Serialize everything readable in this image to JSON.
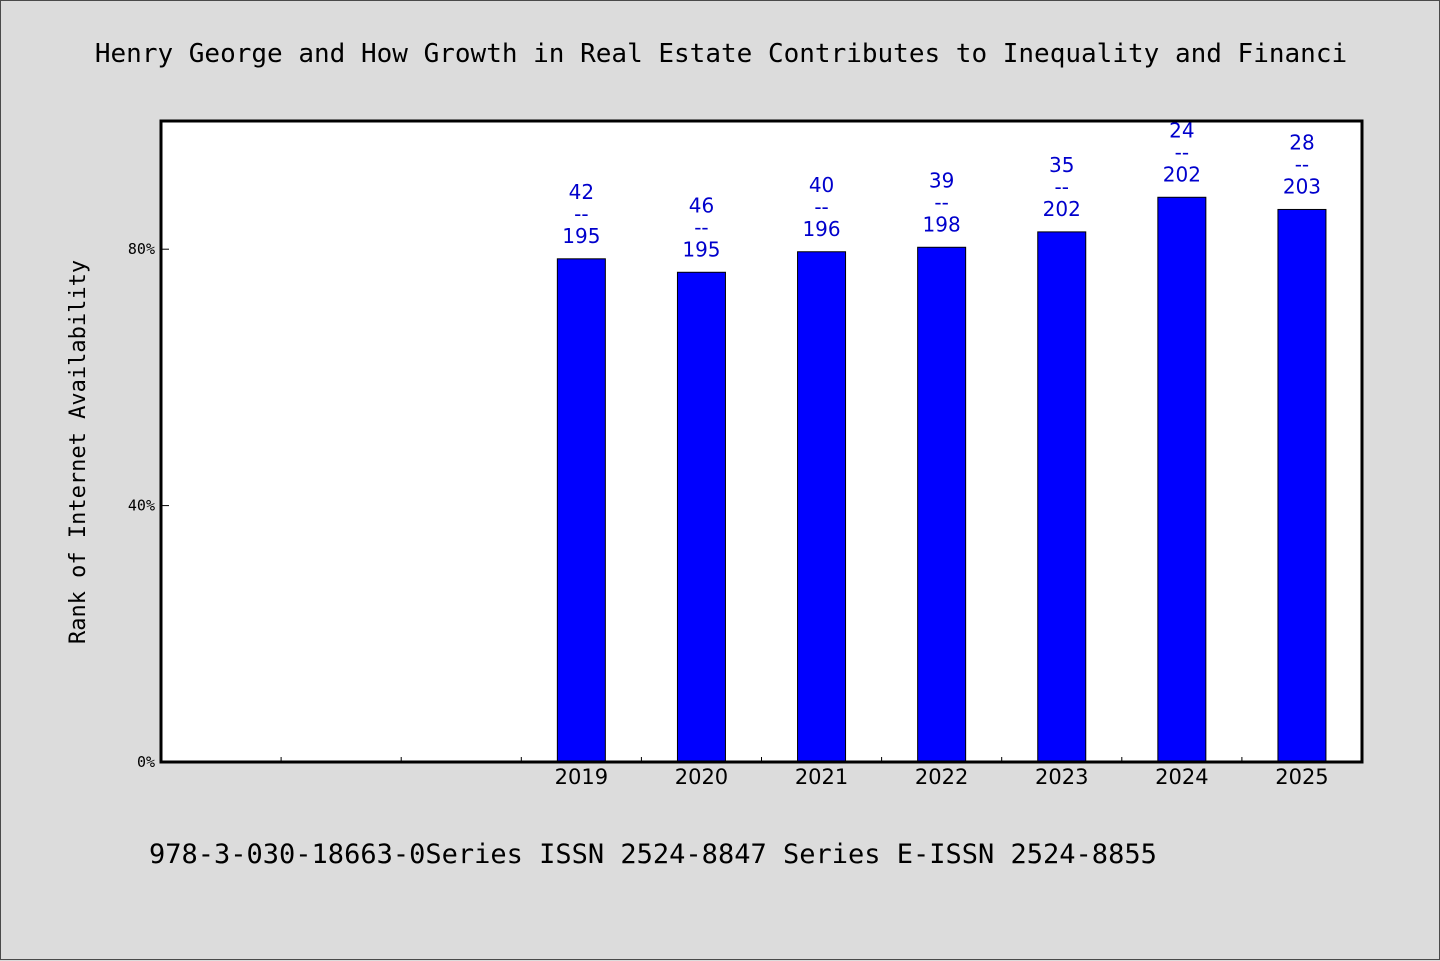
{
  "colors": {
    "background": "#dcdcdc",
    "plot_background": "#ffffff",
    "bar": "#0000ff",
    "data_label": "#0000cc"
  },
  "footer": "978-3-030-18663-0Series ISSN 2524-8847 Series E-ISSN 2524-8855",
  "chart_data": {
    "type": "bar",
    "title": "Henry George and How Growth in Real Estate Contributes to Inequality and Financi",
    "ylabel": "Rank of Internet Availability",
    "xlabel": "",
    "ylim": [
      0,
      100
    ],
    "yticks": [
      {
        "value": 0,
        "label": "0%"
      },
      {
        "value": 40,
        "label": "40%"
      },
      {
        "value": 80,
        "label": "80%"
      }
    ],
    "slots": 10,
    "categories": [
      "2019",
      "2020",
      "2021",
      "2022",
      "2023",
      "2024",
      "2025"
    ],
    "values": [
      78.5,
      76.4,
      79.6,
      80.3,
      82.7,
      88.1,
      86.2
    ],
    "data_labels": [
      [
        "42",
        "--",
        "195"
      ],
      [
        "46",
        "--",
        "195"
      ],
      [
        "40",
        "--",
        "196"
      ],
      [
        "39",
        "--",
        "198"
      ],
      [
        "35",
        "--",
        "202"
      ],
      [
        "24",
        "--",
        "202"
      ],
      [
        "28",
        "--",
        "203"
      ]
    ],
    "grid": false,
    "legend": "none"
  }
}
